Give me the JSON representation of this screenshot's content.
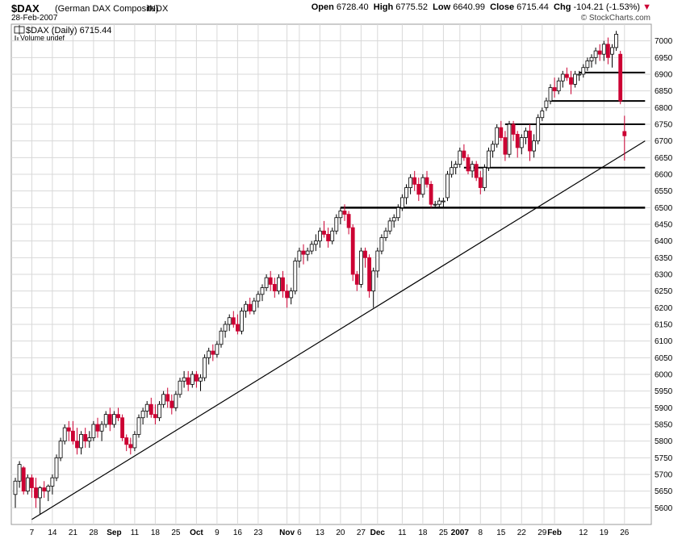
{
  "header": {
    "symbol": "$DAX",
    "description": "(German DAX Composite)",
    "exchange": "INDX",
    "date": "28-Feb-2007",
    "brand": "© StockCharts.com",
    "open_label": "Open",
    "open": "6728.40",
    "high_label": "High",
    "high": "6775.52",
    "low_label": "Low",
    "low": "6640.99",
    "close_label": "Close",
    "close": "6715.44",
    "chg_label": "Chg",
    "chg": "-104.21 (-1.53%)",
    "chg_arrow": "▼"
  },
  "legend": {
    "price_label": "$DAX (Daily) 6715.44",
    "volume_label": "Volume undef"
  },
  "colors": {
    "up": "#000000",
    "down": "#cc0033",
    "grid": "#d8d8d8",
    "frame": "#999999"
  },
  "chart_data": {
    "type": "candlestick",
    "title": "$DAX (German DAX Composite) INDX",
    "ylim": [
      5550,
      7050
    ],
    "yticks": [
      5600,
      5650,
      5700,
      5750,
      5800,
      5850,
      5900,
      5950,
      6000,
      6050,
      6100,
      6150,
      6200,
      6250,
      6300,
      6350,
      6400,
      6450,
      6500,
      6550,
      6600,
      6650,
      6700,
      6750,
      6800,
      6850,
      6900,
      6950,
      7000
    ],
    "grid": true,
    "xticks": [
      {
        "label": "7",
        "i": 4
      },
      {
        "label": "14",
        "i": 9
      },
      {
        "label": "21",
        "i": 14
      },
      {
        "label": "28",
        "i": 19
      },
      {
        "label": "Sep",
        "i": 24,
        "bold": true
      },
      {
        "label": "11",
        "i": 29
      },
      {
        "label": "18",
        "i": 34
      },
      {
        "label": "25",
        "i": 39
      },
      {
        "label": "Oct",
        "i": 44,
        "bold": true
      },
      {
        "label": "9",
        "i": 49
      },
      {
        "label": "16",
        "i": 54
      },
      {
        "label": "23",
        "i": 59
      },
      {
        "label": "Nov",
        "i": 66,
        "bold": true
      },
      {
        "label": "6",
        "i": 69
      },
      {
        "label": "13",
        "i": 74
      },
      {
        "label": "20",
        "i": 79
      },
      {
        "label": "27",
        "i": 84
      },
      {
        "label": "Dec",
        "i": 88,
        "bold": true
      },
      {
        "label": "11",
        "i": 94
      },
      {
        "label": "18",
        "i": 99
      },
      {
        "label": "25",
        "i": 104
      },
      {
        "label": "2007",
        "i": 108,
        "bold": true
      },
      {
        "label": "8",
        "i": 113
      },
      {
        "label": "15",
        "i": 118
      },
      {
        "label": "22",
        "i": 123
      },
      {
        "label": "29",
        "i": 128
      },
      {
        "label": "Feb",
        "i": 131,
        "bold": true
      },
      {
        "label": "12",
        "i": 138
      },
      {
        "label": "19",
        "i": 143
      },
      {
        "label": "26",
        "i": 148
      }
    ],
    "ohlc": [
      [
        5640,
        5690,
        5600,
        5680
      ],
      [
        5680,
        5740,
        5660,
        5730
      ],
      [
        5720,
        5725,
        5640,
        5650
      ],
      [
        5650,
        5700,
        5640,
        5690
      ],
      [
        5690,
        5700,
        5630,
        5660
      ],
      [
        5660,
        5690,
        5600,
        5630
      ],
      [
        5630,
        5665,
        5580,
        5660
      ],
      [
        5660,
        5680,
        5630,
        5650
      ],
      [
        5650,
        5670,
        5620,
        5665
      ],
      [
        5665,
        5700,
        5640,
        5690
      ],
      [
        5690,
        5760,
        5680,
        5750
      ],
      [
        5750,
        5810,
        5740,
        5800
      ],
      [
        5800,
        5850,
        5790,
        5840
      ],
      [
        5840,
        5860,
        5800,
        5830
      ],
      [
        5830,
        5860,
        5790,
        5800
      ],
      [
        5800,
        5840,
        5760,
        5780
      ],
      [
        5780,
        5830,
        5760,
        5820
      ],
      [
        5820,
        5840,
        5780,
        5800
      ],
      [
        5800,
        5830,
        5780,
        5810
      ],
      [
        5810,
        5860,
        5800,
        5850
      ],
      [
        5850,
        5870,
        5810,
        5830
      ],
      [
        5830,
        5860,
        5800,
        5850
      ],
      [
        5850,
        5890,
        5840,
        5880
      ],
      [
        5880,
        5900,
        5830,
        5850
      ],
      [
        5850,
        5890,
        5840,
        5880
      ],
      [
        5880,
        5900,
        5860,
        5870
      ],
      [
        5870,
        5880,
        5800,
        5810
      ],
      [
        5810,
        5820,
        5770,
        5790
      ],
      [
        5790,
        5810,
        5760,
        5780
      ],
      [
        5780,
        5830,
        5770,
        5820
      ],
      [
        5820,
        5880,
        5810,
        5870
      ],
      [
        5870,
        5900,
        5850,
        5890
      ],
      [
        5890,
        5920,
        5870,
        5910
      ],
      [
        5910,
        5930,
        5870,
        5880
      ],
      [
        5880,
        5910,
        5850,
        5870
      ],
      [
        5870,
        5920,
        5860,
        5910
      ],
      [
        5910,
        5950,
        5900,
        5940
      ],
      [
        5940,
        5960,
        5900,
        5920
      ],
      [
        5920,
        5940,
        5880,
        5900
      ],
      [
        5900,
        5950,
        5890,
        5940
      ],
      [
        5940,
        5990,
        5930,
        5980
      ],
      [
        5980,
        6010,
        5960,
        5990
      ],
      [
        5990,
        6010,
        5950,
        5970
      ],
      [
        5970,
        6010,
        5960,
        6000
      ],
      [
        6000,
        6010,
        5960,
        5980
      ],
      [
        5980,
        6000,
        5950,
        5990
      ],
      [
        5990,
        6060,
        5980,
        6050
      ],
      [
        6050,
        6080,
        6030,
        6070
      ],
      [
        6070,
        6090,
        6040,
        6060
      ],
      [
        6060,
        6100,
        6050,
        6090
      ],
      [
        6090,
        6140,
        6080,
        6130
      ],
      [
        6130,
        6160,
        6110,
        6150
      ],
      [
        6150,
        6180,
        6130,
        6170
      ],
      [
        6170,
        6190,
        6140,
        6150
      ],
      [
        6150,
        6180,
        6120,
        6130
      ],
      [
        6130,
        6200,
        6120,
        6190
      ],
      [
        6190,
        6220,
        6170,
        6210
      ],
      [
        6210,
        6230,
        6180,
        6190
      ],
      [
        6190,
        6230,
        6180,
        6220
      ],
      [
        6220,
        6250,
        6200,
        6240
      ],
      [
        6240,
        6270,
        6220,
        6260
      ],
      [
        6260,
        6300,
        6250,
        6290
      ],
      [
        6290,
        6310,
        6250,
        6270
      ],
      [
        6270,
        6290,
        6230,
        6250
      ],
      [
        6250,
        6300,
        6240,
        6290
      ],
      [
        6290,
        6310,
        6230,
        6250
      ],
      [
        6250,
        6270,
        6200,
        6230
      ],
      [
        6230,
        6260,
        6210,
        6250
      ],
      [
        6250,
        6350,
        6240,
        6340
      ],
      [
        6340,
        6380,
        6320,
        6370
      ],
      [
        6370,
        6390,
        6330,
        6360
      ],
      [
        6360,
        6380,
        6340,
        6370
      ],
      [
        6370,
        6400,
        6360,
        6390
      ],
      [
        6390,
        6420,
        6370,
        6400
      ],
      [
        6400,
        6440,
        6380,
        6430
      ],
      [
        6430,
        6460,
        6410,
        6420
      ],
      [
        6420,
        6440,
        6380,
        6400
      ],
      [
        6400,
        6440,
        6390,
        6430
      ],
      [
        6430,
        6480,
        6420,
        6470
      ],
      [
        6470,
        6500,
        6450,
        6490
      ],
      [
        6490,
        6510,
        6460,
        6480
      ],
      [
        6480,
        6490,
        6420,
        6440
      ],
      [
        6440,
        6450,
        6280,
        6300
      ],
      [
        6300,
        6310,
        6250,
        6270
      ],
      [
        6270,
        6380,
        6260,
        6370
      ],
      [
        6370,
        6380,
        6320,
        6350
      ],
      [
        6350,
        6360,
        6230,
        6250
      ],
      [
        6250,
        6320,
        6200,
        6310
      ],
      [
        6310,
        6380,
        6290,
        6370
      ],
      [
        6370,
        6420,
        6360,
        6410
      ],
      [
        6410,
        6440,
        6400,
        6430
      ],
      [
        6430,
        6470,
        6420,
        6460
      ],
      [
        6460,
        6480,
        6440,
        6470
      ],
      [
        6470,
        6510,
        6460,
        6500
      ],
      [
        6500,
        6540,
        6490,
        6530
      ],
      [
        6530,
        6570,
        6510,
        6560
      ],
      [
        6560,
        6600,
        6540,
        6590
      ],
      [
        6590,
        6610,
        6550,
        6570
      ],
      [
        6570,
        6590,
        6520,
        6540
      ],
      [
        6540,
        6600,
        6530,
        6590
      ],
      [
        6590,
        6610,
        6560,
        6570
      ],
      [
        6570,
        6580,
        6500,
        6510
      ],
      [
        6510,
        6520,
        6500,
        6510
      ],
      [
        6510,
        6530,
        6500,
        6520
      ],
      [
        6520,
        6530,
        6500,
        6520
      ],
      [
        6530,
        6610,
        6520,
        6600
      ],
      [
        6600,
        6640,
        6590,
        6620
      ],
      [
        6620,
        6640,
        6600,
        6630
      ],
      [
        6630,
        6680,
        6620,
        6670
      ],
      [
        6670,
        6690,
        6640,
        6650
      ],
      [
        6650,
        6660,
        6600,
        6610
      ],
      [
        6610,
        6640,
        6590,
        6630
      ],
      [
        6630,
        6640,
        6580,
        6590
      ],
      [
        6590,
        6610,
        6540,
        6560
      ],
      [
        6560,
        6630,
        6550,
        6620
      ],
      [
        6620,
        6680,
        6610,
        6670
      ],
      [
        6670,
        6700,
        6650,
        6690
      ],
      [
        6690,
        6750,
        6680,
        6740
      ],
      [
        6740,
        6760,
        6700,
        6710
      ],
      [
        6710,
        6730,
        6640,
        6660
      ],
      [
        6660,
        6760,
        6650,
        6750
      ],
      [
        6750,
        6760,
        6700,
        6720
      ],
      [
        6720,
        6730,
        6650,
        6680
      ],
      [
        6680,
        6720,
        6660,
        6710
      ],
      [
        6710,
        6740,
        6690,
        6730
      ],
      [
        6730,
        6750,
        6640,
        6670
      ],
      [
        6670,
        6720,
        6650,
        6700
      ],
      [
        6700,
        6780,
        6690,
        6770
      ],
      [
        6770,
        6800,
        6760,
        6790
      ],
      [
        6800,
        6830,
        6790,
        6820
      ],
      [
        6820,
        6870,
        6810,
        6860
      ],
      [
        6860,
        6890,
        6830,
        6850
      ],
      [
        6850,
        6890,
        6840,
        6880
      ],
      [
        6880,
        6910,
        6860,
        6900
      ],
      [
        6900,
        6920,
        6880,
        6890
      ],
      [
        6890,
        6910,
        6840,
        6870
      ],
      [
        6870,
        6910,
        6860,
        6900
      ],
      [
        6900,
        6910,
        6880,
        6900
      ],
      [
        6900,
        6930,
        6890,
        6920
      ],
      [
        6920,
        6950,
        6910,
        6940
      ],
      [
        6940,
        6960,
        6920,
        6950
      ],
      [
        6950,
        6980,
        6930,
        6970
      ],
      [
        6970,
        6990,
        6940,
        6960
      ],
      [
        6960,
        7000,
        6940,
        6990
      ],
      [
        6990,
        7010,
        6930,
        6950
      ],
      [
        6960,
        6990,
        6920,
        6980
      ],
      [
        6980,
        7030,
        6970,
        7020
      ],
      [
        6960,
        6970,
        6810,
        6820
      ],
      [
        6728.4,
        6775.52,
        6640.99,
        6715.44
      ]
    ],
    "lines": [
      {
        "type": "trendline",
        "from": {
          "i": 4,
          "y": 5565
        },
        "to": {
          "i": 153,
          "y": 6700
        }
      },
      {
        "type": "hline",
        "y": 6500,
        "from_i": 79,
        "to_i": 153,
        "weight": 2.5
      },
      {
        "type": "hline",
        "y": 6620,
        "from_i": 109,
        "to_i": 153,
        "weight": 2
      },
      {
        "type": "hline",
        "y": 6750,
        "from_i": 119,
        "to_i": 153,
        "weight": 2
      },
      {
        "type": "hline",
        "y": 6820,
        "from_i": 130,
        "to_i": 153,
        "weight": 2
      },
      {
        "type": "hline",
        "y": 6905,
        "from_i": 137,
        "to_i": 153,
        "weight": 2
      }
    ]
  }
}
